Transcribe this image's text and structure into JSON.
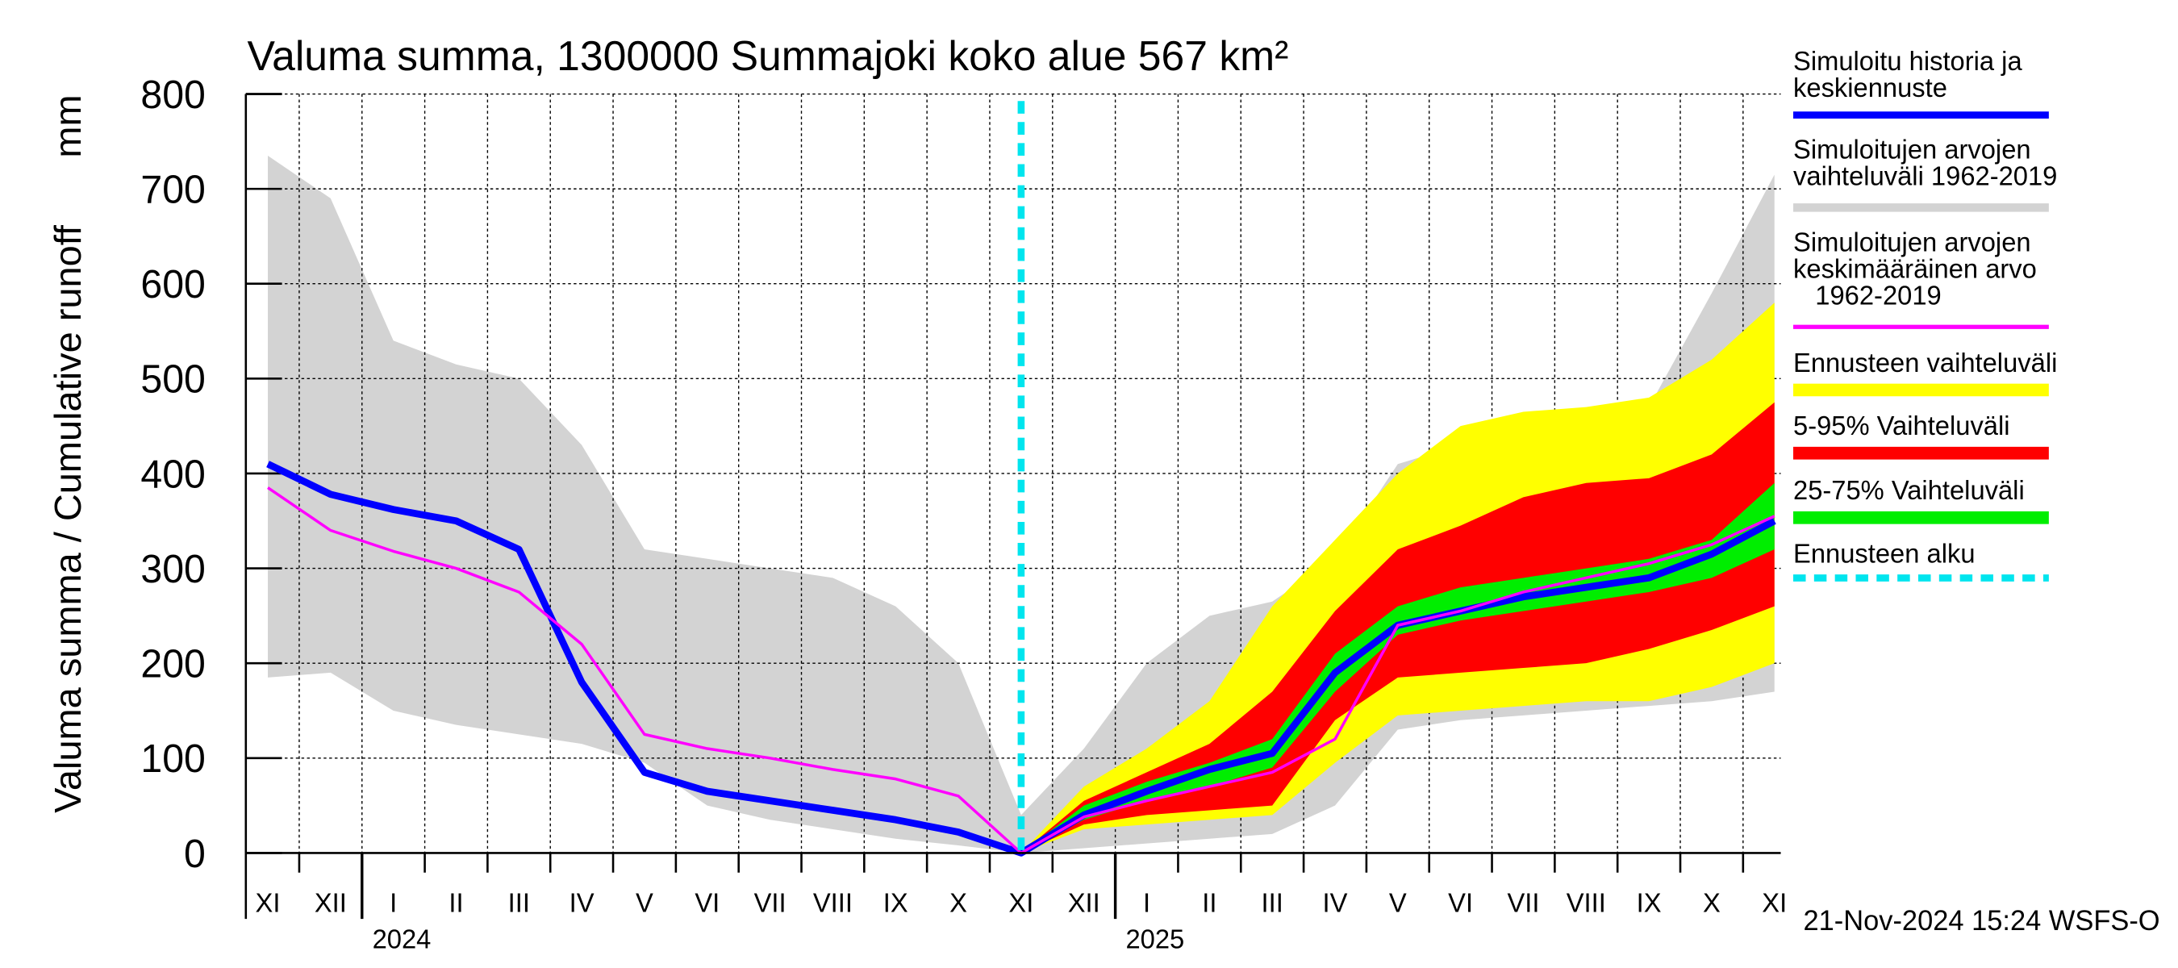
{
  "chart_data": {
    "type": "line",
    "title": "Valuma summa, 1300000 Summajoki koko alue 567 km²",
    "y_label": "Valuma summa / Cumulative runoff",
    "y_unit": "mm",
    "footer": "21-Nov-2024 15:24 WSFS-O",
    "categories": [
      "XI",
      "XII",
      "I",
      "II",
      "III",
      "IV",
      "V",
      "VI",
      "VII",
      "VIII",
      "IX",
      "X",
      "XI",
      "XII",
      "I",
      "II",
      "III",
      "IV",
      "V",
      "VI",
      "VII",
      "VIII",
      "IX",
      "X",
      "XI"
    ],
    "year_labels": [
      "2024",
      "2025"
    ],
    "ylim": [
      0,
      800
    ],
    "yticks": [
      0,
      100,
      200,
      300,
      400,
      500,
      600,
      700,
      800
    ],
    "grid": true,
    "series": [
      {
        "name": "Simuloitu historia ja\nkeskiennuste",
        "color": "#0000ff",
        "values": [
          410,
          378,
          362,
          350,
          320,
          180,
          85,
          65,
          55,
          45,
          35,
          22,
          0,
          40,
          65,
          88,
          105,
          190,
          240,
          255,
          270,
          280,
          290,
          315,
          350
        ]
      },
      {
        "name": "Simuloitujen arvojen\nkeskimääräinen arvo\n   1962-2019",
        "color": "#ff00ff",
        "values": [
          385,
          340,
          318,
          300,
          275,
          220,
          125,
          110,
          100,
          88,
          78,
          60,
          0,
          38,
          55,
          70,
          85,
          120,
          240,
          255,
          275,
          290,
          305,
          325,
          355
        ]
      }
    ],
    "bands": [
      {
        "name": "Simuloitujen arvojen\nvaihteluväli 1962-2019",
        "color": "#d3d3d3",
        "lower": [
          185,
          190,
          150,
          135,
          125,
          115,
          95,
          50,
          35,
          25,
          15,
          8,
          0,
          5,
          10,
          15,
          20,
          50,
          130,
          140,
          145,
          150,
          155,
          160,
          170
        ],
        "upper": [
          735,
          690,
          540,
          515,
          500,
          430,
          320,
          310,
          300,
          290,
          260,
          200,
          40,
          110,
          200,
          250,
          265,
          310,
          410,
          430,
          450,
          460,
          470,
          590,
          715
        ]
      },
      {
        "name": "Ennusteen vaihteluväli",
        "color": "#ffff00",
        "lower": [
          null,
          null,
          null,
          null,
          null,
          null,
          null,
          null,
          null,
          null,
          null,
          null,
          0,
          25,
          30,
          35,
          40,
          95,
          145,
          150,
          155,
          160,
          160,
          175,
          200
        ],
        "upper": [
          null,
          null,
          null,
          null,
          null,
          null,
          null,
          null,
          null,
          null,
          null,
          null,
          0,
          70,
          110,
          160,
          260,
          330,
          400,
          450,
          465,
          470,
          480,
          520,
          580
        ]
      },
      {
        "name": "5-95% Vaihteluväli",
        "color": "#ff0000",
        "lower": [
          null,
          null,
          null,
          null,
          null,
          null,
          null,
          null,
          null,
          null,
          null,
          null,
          0,
          30,
          40,
          45,
          50,
          140,
          185,
          190,
          195,
          200,
          215,
          235,
          260
        ],
        "upper": [
          null,
          null,
          null,
          null,
          null,
          null,
          null,
          null,
          null,
          null,
          null,
          null,
          0,
          55,
          85,
          115,
          170,
          255,
          320,
          345,
          375,
          390,
          395,
          420,
          475
        ]
      },
      {
        "name": "25-75% Vaihteluväli",
        "color": "#00ee00",
        "lower": [
          null,
          null,
          null,
          null,
          null,
          null,
          null,
          null,
          null,
          null,
          null,
          null,
          0,
          35,
          55,
          70,
          90,
          170,
          230,
          245,
          255,
          265,
          275,
          290,
          320
        ],
        "upper": [
          null,
          null,
          null,
          null,
          null,
          null,
          null,
          null,
          null,
          null,
          null,
          null,
          0,
          50,
          75,
          95,
          120,
          210,
          260,
          280,
          290,
          300,
          310,
          330,
          390
        ]
      }
    ],
    "forecast_start": {
      "name": "Ennusteen alku",
      "color": "#00e5ee"
    }
  }
}
